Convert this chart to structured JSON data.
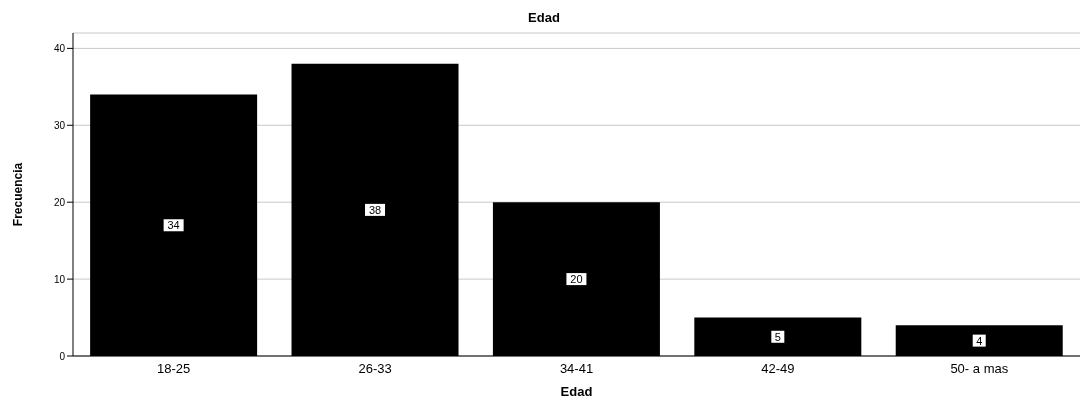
{
  "chart_data": {
    "type": "bar",
    "title": "Edad",
    "xlabel": "Edad",
    "ylabel": "Frecuencia",
    "categories": [
      "18-25",
      "26-33",
      "34-41",
      "42-49",
      "50- a mas"
    ],
    "values": [
      34,
      38,
      20,
      5,
      4
    ],
    "color": "#000000",
    "ylim": [
      0,
      42
    ],
    "yticks": [
      0,
      10,
      20,
      30,
      40
    ],
    "grid": "y",
    "data_labels": true
  }
}
